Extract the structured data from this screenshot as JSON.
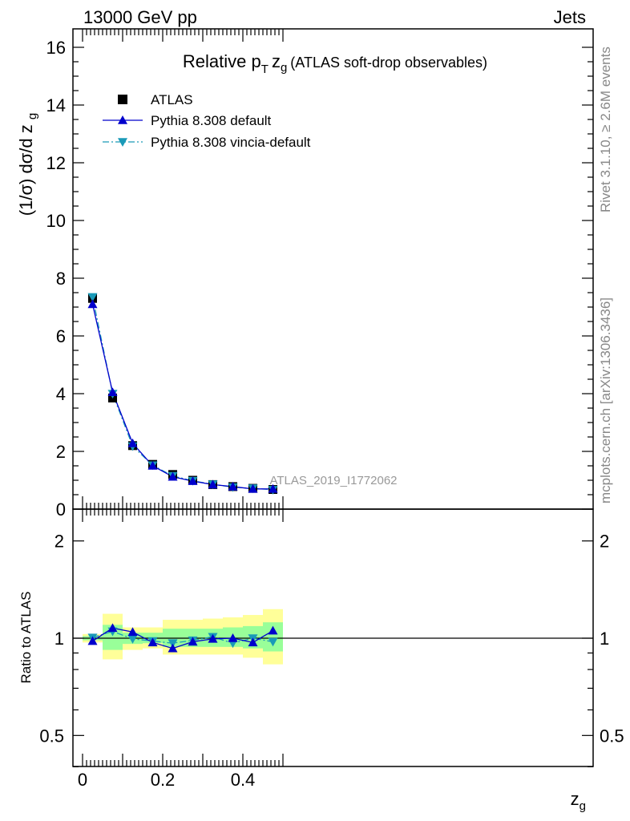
{
  "header": {
    "left": "13000 GeV pp",
    "right": "Jets"
  },
  "side": {
    "top": "Rivet 3.1.10, ≥ 2.6M events",
    "bottom": "mcplots.cern.ch [arXiv:1306.3436]"
  },
  "colors": {
    "atlas": "#000000",
    "default": "#0000cc",
    "vincia": "#1a9ab8",
    "band_outer": "#ffff99",
    "band_inner": "#99ff99"
  },
  "chart_data": [
    {
      "type": "scatter",
      "title_prefix": "Relative p",
      "title_sub1": "T",
      "title_var": "z",
      "title_sub2": "g",
      "title_suffix": "(ATLAS soft-drop observables)",
      "xlabel": "z",
      "xlabel_sub": "g",
      "ylabel": "(1/σ) dσ/d z",
      "ylabel_sub": "g",
      "watermark": "ATLAS_2019_I1772062",
      "xlim": [
        -0.01,
        0.51
      ],
      "ylim": [
        0,
        16.5
      ],
      "yticks": [
        0,
        2,
        4,
        6,
        8,
        10,
        12,
        14,
        16
      ],
      "xticks": [
        0,
        0.2,
        0.4
      ],
      "x": [
        0.025,
        0.075,
        0.125,
        0.175,
        0.225,
        0.275,
        0.325,
        0.375,
        0.425,
        0.475
      ],
      "legend_position": "top-left",
      "series": [
        {
          "name": "ATLAS",
          "marker": "square",
          "values": [
            7.3,
            3.85,
            2.2,
            1.55,
            1.2,
            1.0,
            0.85,
            0.78,
            0.72,
            0.68
          ]
        },
        {
          "name": "Pythia 8.308 default",
          "marker": "triangle-up",
          "line": "solid",
          "values": [
            7.1,
            4.05,
            2.28,
            1.5,
            1.12,
            0.97,
            0.85,
            0.78,
            0.7,
            0.7
          ]
        },
        {
          "name": "Pythia 8.308 vincia-default",
          "marker": "triangle-down",
          "line": "dashdot",
          "values": [
            7.35,
            4.0,
            2.18,
            1.52,
            1.15,
            0.98,
            0.86,
            0.76,
            0.72,
            0.67
          ]
        }
      ]
    },
    {
      "type": "scatter",
      "ylabel": "Ratio to ATLAS",
      "ylim": [
        0.35,
        2.3
      ],
      "yticks": [
        0.5,
        1,
        2
      ],
      "ytick_labels": [
        "0.5",
        "1",
        "2"
      ],
      "xticks": [
        0,
        0.2,
        0.4
      ],
      "xtick_labels": [
        "0",
        "0.2",
        "0.4"
      ],
      "x": [
        0.025,
        0.075,
        0.125,
        0.175,
        0.225,
        0.275,
        0.325,
        0.375,
        0.425,
        0.475
      ],
      "bands": {
        "outer": [
          [
            0.97,
            1.03
          ],
          [
            0.86,
            1.19
          ],
          [
            0.92,
            1.08
          ],
          [
            0.93,
            1.08
          ],
          [
            0.89,
            1.14
          ],
          [
            0.89,
            1.14
          ],
          [
            0.89,
            1.15
          ],
          [
            0.89,
            1.16
          ],
          [
            0.87,
            1.18
          ],
          [
            0.83,
            1.23
          ]
        ],
        "inner": [
          [
            0.985,
            1.015
          ],
          [
            0.92,
            1.1
          ],
          [
            0.96,
            1.04
          ],
          [
            0.965,
            1.04
          ],
          [
            0.94,
            1.07
          ],
          [
            0.94,
            1.07
          ],
          [
            0.94,
            1.07
          ],
          [
            0.94,
            1.08
          ],
          [
            0.93,
            1.09
          ],
          [
            0.91,
            1.12
          ]
        ]
      },
      "series": [
        {
          "name": "Pythia 8.308 default",
          "values": [
            0.98,
            1.075,
            1.045,
            0.97,
            0.93,
            0.975,
            0.995,
            1.0,
            0.97,
            1.055
          ]
        },
        {
          "name": "Pythia 8.308 vincia-default",
          "values": [
            1.005,
            1.05,
            0.995,
            0.98,
            0.965,
            0.985,
            1.01,
            0.965,
            1.0,
            0.975
          ]
        }
      ]
    }
  ]
}
